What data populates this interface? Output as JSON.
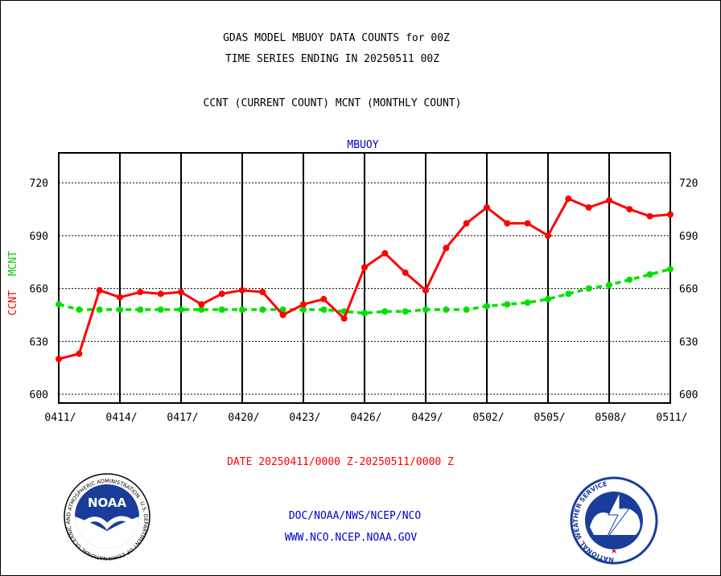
{
  "header": {
    "title_line1": "GDAS MODEL MBUOY DATA COUNTS for 00Z",
    "title_line2": "TIME SERIES ENDING IN 20250511 00Z",
    "subtitle": "CCNT (CURRENT COUNT) MCNT (MONTHLY COUNT)"
  },
  "footer": {
    "date_range": "DATE 20250411/0000 Z-20250511/0000 Z",
    "org_line": "DOC/NOAA/NWS/NCEP/NCO",
    "url_line": "WWW.NCO.NCEP.NOAA.GOV",
    "noaa_logo_text": "NOAA",
    "noaa_ring_text": "NATIONAL OCEANIC AND ATMOSPHERIC ADMINISTRATION · U.S. DEPARTMENT OF COMMERCE",
    "nws_ring_text": "NATIONAL WEATHER SERVICE"
  },
  "colors": {
    "ccnt": "#ff0000",
    "mcnt": "#00e000",
    "label_blue": "#0000cc"
  },
  "chart_data": {
    "type": "line",
    "title": "MBUOY",
    "ylabel_left": [
      "CCNT",
      "MCNT"
    ],
    "ylim": [
      595,
      737
    ],
    "yticks": [
      600,
      630,
      660,
      690,
      720
    ],
    "xtick_labels": [
      "0411/",
      "0414/",
      "0417/",
      "0420/",
      "0423/",
      "0426/",
      "0429/",
      "0502/",
      "0505/",
      "0508/",
      "0511/"
    ],
    "grid": true,
    "x_dates": [
      "0411",
      "0412",
      "0413",
      "0414",
      "0415",
      "0416",
      "0417",
      "0418",
      "0419",
      "0420",
      "0421",
      "0422",
      "0423",
      "0424",
      "0425",
      "0426",
      "0427",
      "0428",
      "0429",
      "0430",
      "0501",
      "0502",
      "0503",
      "0504",
      "0505",
      "0506",
      "0507",
      "0508",
      "0509",
      "0510",
      "0511"
    ],
    "series": [
      {
        "name": "CCNT",
        "values": [
          620,
          623,
          659,
          655,
          658,
          657,
          658,
          651,
          657,
          659,
          658,
          645,
          651,
          654,
          643,
          672,
          680,
          669,
          659,
          683,
          697,
          706,
          697,
          697,
          690,
          711,
          706,
          710,
          705,
          701,
          702
        ]
      },
      {
        "name": "MCNT",
        "values": [
          651,
          648,
          648,
          648,
          648,
          648,
          648,
          648,
          648,
          648,
          648,
          648,
          648,
          648,
          647,
          646,
          647,
          647,
          648,
          648,
          648,
          650,
          651,
          652,
          654,
          657,
          660,
          662,
          665,
          668,
          671
        ]
      }
    ]
  }
}
